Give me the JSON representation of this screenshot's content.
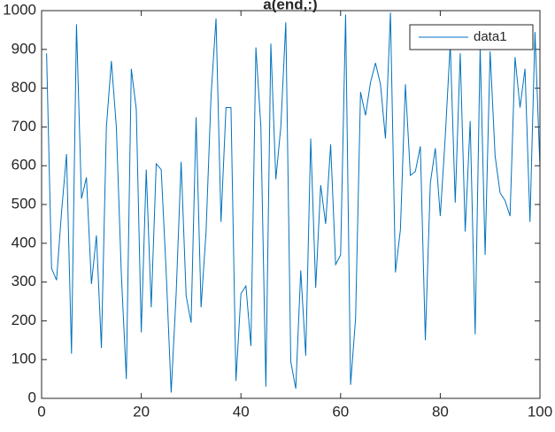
{
  "chart_data": {
    "type": "line",
    "title": "a(end,:)",
    "x": [
      1,
      2,
      3,
      4,
      5,
      6,
      7,
      8,
      9,
      10,
      11,
      12,
      13,
      14,
      15,
      16,
      17,
      18,
      19,
      20,
      21,
      22,
      23,
      24,
      25,
      26,
      27,
      28,
      29,
      30,
      31,
      32,
      33,
      34,
      35,
      36,
      37,
      38,
      39,
      40,
      41,
      42,
      43,
      44,
      45,
      46,
      47,
      48,
      49,
      50,
      51,
      52,
      53,
      54,
      55,
      56,
      57,
      58,
      59,
      60,
      61,
      62,
      63,
      64,
      65,
      66,
      67,
      68,
      69,
      70,
      71,
      72,
      73,
      74,
      75,
      76,
      77,
      78,
      79,
      80,
      81,
      82,
      83,
      84,
      85,
      86,
      87,
      88,
      89,
      90,
      91,
      92,
      93,
      94,
      95,
      96,
      97,
      98,
      99,
      100
    ],
    "series": [
      {
        "name": "data1",
        "color": "#0072bd",
        "values": [
          890,
          335,
          305,
          480,
          630,
          115,
          965,
          515,
          570,
          295,
          420,
          130,
          700,
          870,
          700,
          320,
          50,
          850,
          745,
          170,
          590,
          235,
          605,
          590,
          325,
          15,
          270,
          610,
          265,
          195,
          725,
          235,
          430,
          780,
          980,
          455,
          750,
          750,
          45,
          270,
          290,
          135,
          905,
          700,
          30,
          915,
          565,
          700,
          970,
          95,
          25,
          330,
          110,
          670,
          285,
          550,
          450,
          655,
          345,
          370,
          990,
          35,
          205,
          790,
          730,
          815,
          865,
          810,
          670,
          995,
          325,
          435,
          810,
          575,
          585,
          650,
          150,
          555,
          645,
          470,
          675,
          915,
          505,
          890,
          430,
          715,
          165,
          905,
          370,
          895,
          625,
          530,
          510,
          470,
          880,
          750,
          850,
          455,
          945,
          595
        ]
      }
    ],
    "xlim": [
      0,
      100
    ],
    "xticks": [
      0,
      20,
      40,
      60,
      80,
      100
    ],
    "ylim": [
      0,
      1000
    ],
    "yticks": [
      0,
      100,
      200,
      300,
      400,
      500,
      600,
      700,
      800,
      900,
      1000
    ],
    "legend": "top-right"
  }
}
